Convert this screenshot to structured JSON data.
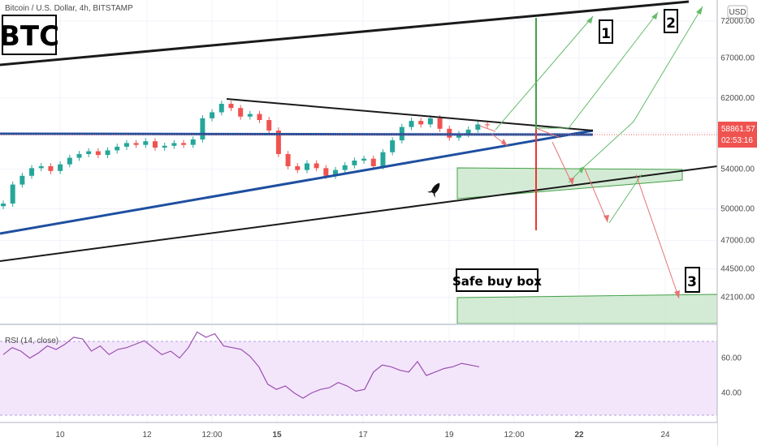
{
  "header": {
    "symbol_badge": "BTC",
    "title": "Bitcoin / U.S. Dollar, 4h, BITSTAMP",
    "currency_button": "USD"
  },
  "price_tag": {
    "price": "58861.57",
    "countdown": "02:53:16"
  },
  "colors": {
    "up": "#26a69a",
    "down": "#ef5350",
    "trend_blue": "#1e4fa0",
    "green_box": "#c8e6c9",
    "green_line": "#43a047",
    "red_arrow": "#e57373",
    "rsi_line": "#9c4fb0",
    "rsi_band": "#f1e4fb"
  },
  "chart_data": [
    {
      "type": "candlestick",
      "title": "Bitcoin / U.S. Dollar, 4h, BITSTAMP",
      "ylabel": "USD",
      "ylim": [
        40000,
        75000
      ],
      "y_scale": "log",
      "y_ticks": [
        "72000.00",
        "67000.00",
        "62000.00",
        "58000.00",
        "54000.00",
        "50000.00",
        "47000.00",
        "44500.00",
        "42100.00"
      ],
      "x_ticks": [
        "10",
        "12",
        "12:00",
        "15",
        "17",
        "19",
        "12:00",
        "22",
        "24"
      ],
      "grid": true,
      "close_path": [
        50500,
        52400,
        53300,
        54100,
        54300,
        53800,
        54500,
        55200,
        55600,
        55900,
        55500,
        56000,
        56400,
        56800,
        56600,
        57000,
        56300,
        56500,
        56800,
        56600,
        57200,
        59600,
        60300,
        61300,
        60800,
        59800,
        60100,
        59400,
        58200,
        55600,
        54300,
        53900,
        54600,
        54100,
        53300,
        53900,
        54400,
        54900,
        55100,
        54300,
        55800,
        57100,
        58600,
        59300,
        58900,
        59600,
        58400,
        57400,
        57800,
        58300,
        58900,
        58861
      ],
      "annotations": [
        "1",
        "2",
        "3",
        "Safe buy box"
      ]
    },
    {
      "type": "line",
      "title": "RSI (14, close)",
      "ylim": [
        30,
        70
      ],
      "y_ticks": [
        "60.00",
        "40.00"
      ],
      "values": [
        62,
        66,
        64,
        60,
        63,
        67,
        65,
        68,
        72,
        71,
        64,
        67,
        62,
        65,
        66,
        68,
        70,
        66,
        62,
        64,
        60,
        66,
        75,
        72,
        74,
        67,
        66,
        65,
        61,
        55,
        45,
        42,
        44,
        40,
        37,
        40,
        42,
        43,
        46,
        44,
        41,
        42,
        52,
        56,
        55,
        53,
        52,
        58,
        50,
        52,
        54,
        55,
        57,
        56,
        55
      ]
    }
  ]
}
